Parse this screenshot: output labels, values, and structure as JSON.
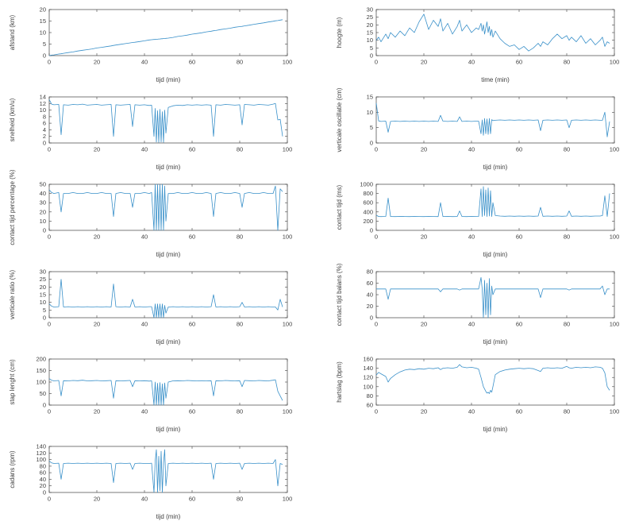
{
  "style": {
    "line_color": "#3990c9",
    "axis_color": "#404040",
    "background": "#ffffff"
  },
  "x_minutes": [
    0,
    1,
    2,
    4,
    5,
    6,
    8,
    10,
    12,
    14,
    16,
    18,
    20,
    22,
    24,
    26,
    27,
    28,
    30,
    32,
    34,
    35,
    36,
    38,
    40,
    42,
    43,
    44,
    44.5,
    45,
    45.5,
    46,
    46.5,
    47,
    47.5,
    48,
    48.5,
    49,
    50,
    52,
    54,
    56,
    58,
    60,
    62,
    64,
    66,
    68,
    69,
    70,
    72,
    74,
    76,
    78,
    80,
    81,
    82,
    84,
    86,
    88,
    90,
    92,
    94,
    95,
    96,
    97,
    98
  ],
  "chart_data": [
    {
      "type": "line",
      "ylabel": "afstand (km)",
      "xlabel": "tijd (min)",
      "xlim": [
        0,
        100
      ],
      "xticks": [
        0,
        20,
        40,
        60,
        80,
        100
      ],
      "ylim": [
        0,
        20
      ],
      "yticks": [
        0,
        5,
        10,
        15,
        20
      ],
      "grid": false,
      "legend": null,
      "x": "shared",
      "y": [
        0,
        0.2,
        0.3,
        0.7,
        0.8,
        1.0,
        1.3,
        1.6,
        2.0,
        2.3,
        2.6,
        2.9,
        3.3,
        3.6,
        3.9,
        4.2,
        4.4,
        4.6,
        4.9,
        5.2,
        5.5,
        5.7,
        5.8,
        6.1,
        6.4,
        6.8,
        6.9,
        7.0,
        7.0,
        7.1,
        7.1,
        7.2,
        7.2,
        7.3,
        7.3,
        7.4,
        7.4,
        7.5,
        7.6,
        7.9,
        8.3,
        8.6,
        8.9,
        9.3,
        9.6,
        9.9,
        10.3,
        10.6,
        10.8,
        10.9,
        11.3,
        11.6,
        11.9,
        12.3,
        12.6,
        12.7,
        12.9,
        13.2,
        13.6,
        13.9,
        14.2,
        14.6,
        14.9,
        15.1,
        15.2,
        15.4,
        15.6
      ]
    },
    {
      "type": "line",
      "ylabel": "hoogte (m)",
      "xlabel": "time (min)",
      "xlim": [
        0,
        100
      ],
      "xticks": [
        0,
        20,
        40,
        60,
        80,
        100
      ],
      "ylim": [
        0,
        30
      ],
      "yticks": [
        0,
        5,
        10,
        15,
        20,
        25,
        30
      ],
      "grid": false,
      "legend": null,
      "x": "shared",
      "y": [
        10,
        12,
        9,
        14,
        11,
        15,
        12,
        16,
        13,
        18,
        15,
        22,
        27,
        17,
        23,
        19,
        24,
        16,
        21,
        14,
        19,
        23,
        16,
        20,
        15,
        18,
        17,
        21,
        16,
        20,
        14,
        18,
        22,
        15,
        19,
        13,
        17,
        12,
        16,
        11,
        8,
        6,
        7,
        4,
        6,
        3,
        5,
        8,
        6,
        9,
        7,
        11,
        14,
        11,
        13,
        10,
        12,
        9,
        13,
        8,
        11,
        7,
        10,
        12,
        6,
        9,
        8
      ]
    },
    {
      "type": "line",
      "ylabel": "snelheid (km/u)",
      "xlabel": "tijd (min)",
      "xlim": [
        0,
        100
      ],
      "xticks": [
        0,
        20,
        40,
        60,
        80,
        100
      ],
      "ylim": [
        0,
        14
      ],
      "yticks": [
        0,
        2,
        4,
        6,
        8,
        10,
        12,
        14
      ],
      "grid": false,
      "legend": null,
      "x": "shared",
      "y": [
        13.2,
        11.8,
        11.6,
        11.7,
        2.5,
        11.6,
        11.5,
        11.7,
        11.6,
        11.8,
        11.5,
        11.6,
        11.7,
        11.5,
        11.6,
        11.7,
        2,
        11.6,
        11.5,
        11.6,
        11.7,
        5,
        11.6,
        11.5,
        11.6,
        11.4,
        11.5,
        2,
        10.5,
        0.3,
        9.8,
        0.2,
        10.2,
        0.3,
        9.5,
        0.2,
        10,
        3,
        10.8,
        11.3,
        11.5,
        11.4,
        11.6,
        11.5,
        11.6,
        11.5,
        11.6,
        11.5,
        2,
        11.6,
        11.5,
        11.7,
        11.6,
        11.5,
        11.6,
        5.5,
        11.7,
        11.6,
        11.5,
        11.7,
        11.6,
        11.5,
        11.8,
        12,
        7,
        7.2,
        2
      ]
    },
    {
      "type": "line",
      "ylabel": "verticale oscillatie (cm)",
      "xlabel": "tijd (min)",
      "xlim": [
        0,
        100
      ],
      "xticks": [
        0,
        20,
        40,
        60,
        80,
        100
      ],
      "ylim": [
        0,
        15
      ],
      "yticks": [
        0,
        5,
        10,
        15
      ],
      "grid": false,
      "legend": null,
      "x": "shared",
      "y": [
        13,
        7.2,
        7,
        7.1,
        3.5,
        7,
        7.1,
        7,
        7.1,
        7,
        7.1,
        7,
        7.1,
        7,
        7.1,
        7,
        9,
        7.1,
        7,
        7.1,
        7,
        8.5,
        7,
        7.1,
        7,
        7.1,
        7.1,
        3,
        7.5,
        2.5,
        8,
        3,
        7.8,
        2.8,
        8,
        3,
        7.6,
        7.3,
        7.4,
        7.5,
        7.4,
        7.5,
        7.4,
        7.5,
        7.4,
        7.5,
        7.4,
        7.5,
        4,
        7.4,
        7.5,
        7.4,
        7.5,
        7.4,
        7.5,
        5,
        7.4,
        7.5,
        7.4,
        7.5,
        7.4,
        7.5,
        7.4,
        7.4,
        10,
        2,
        7
      ]
    },
    {
      "type": "line",
      "ylabel": "contact tijd percentage (%)",
      "xlabel": "tijd (min)",
      "xlim": [
        0,
        100
      ],
      "xticks": [
        0,
        20,
        40,
        60,
        80,
        100
      ],
      "ylim": [
        0,
        50
      ],
      "yticks": [
        0,
        10,
        20,
        30,
        40,
        50
      ],
      "grid": false,
      "legend": null,
      "x": "shared",
      "y": [
        44,
        41,
        40,
        41,
        20,
        40,
        40,
        41,
        40,
        40,
        41,
        40,
        40,
        41,
        40,
        40,
        15,
        40,
        41,
        40,
        40,
        25,
        40,
        40,
        41,
        40,
        41,
        0,
        50,
        0,
        50,
        0,
        50,
        0,
        50,
        0,
        48,
        10,
        40,
        40,
        41,
        40,
        40,
        41,
        40,
        40,
        41,
        40,
        15,
        40,
        41,
        40,
        40,
        41,
        40,
        25,
        40,
        41,
        40,
        40,
        41,
        40,
        40,
        48,
        0,
        45,
        42
      ]
    },
    {
      "type": "line",
      "ylabel": "contact tijd (ms)",
      "xlabel": "tijd (min)",
      "xlim": [
        0,
        100
      ],
      "xticks": [
        0,
        20,
        40,
        60,
        80,
        100
      ],
      "ylim": [
        0,
        1000
      ],
      "yticks": [
        0,
        200,
        400,
        600,
        800,
        1000
      ],
      "grid": false,
      "legend": null,
      "x": "shared",
      "y": [
        330,
        300,
        298,
        302,
        700,
        300,
        298,
        302,
        300,
        298,
        302,
        300,
        298,
        302,
        300,
        298,
        600,
        300,
        302,
        298,
        300,
        420,
        300,
        298,
        302,
        300,
        302,
        900,
        300,
        950,
        320,
        880,
        300,
        920,
        310,
        860,
        300,
        600,
        320,
        310,
        305,
        310,
        305,
        310,
        305,
        310,
        305,
        310,
        500,
        305,
        310,
        305,
        310,
        305,
        310,
        420,
        305,
        310,
        305,
        310,
        305,
        310,
        310,
        320,
        750,
        300,
        800
      ]
    },
    {
      "type": "line",
      "ylabel": "verticale ratio (%)",
      "xlabel": "tijd (min)",
      "xlim": [
        0,
        100
      ],
      "xticks": [
        0,
        20,
        40,
        60,
        80,
        100
      ],
      "ylim": [
        0,
        30
      ],
      "yticks": [
        0,
        5,
        10,
        15,
        20,
        25,
        30
      ],
      "grid": false,
      "legend": null,
      "x": "shared",
      "y": [
        9,
        7.5,
        7,
        7.2,
        25,
        7,
        7.2,
        7,
        7.2,
        7,
        7.2,
        7,
        7.2,
        7,
        7.2,
        7,
        22,
        7.2,
        7,
        7.2,
        7,
        12,
        7,
        7.2,
        7,
        7.2,
        7.2,
        0,
        9,
        0,
        9,
        0,
        9,
        0,
        9,
        0,
        8,
        3,
        7,
        7.2,
        7,
        7.2,
        7,
        7.2,
        7,
        7.2,
        7,
        7.2,
        15,
        7,
        7.2,
        7,
        7.2,
        7,
        7.2,
        10,
        7,
        7.2,
        7,
        7.2,
        7,
        7.2,
        7,
        7,
        5,
        12,
        7
      ]
    },
    {
      "type": "line",
      "ylabel": "contact tijd balans (%)",
      "xlabel": "tijd (min)",
      "xlim": [
        0,
        100
      ],
      "xticks": [
        0,
        20,
        40,
        60,
        80,
        100
      ],
      "ylim": [
        0,
        80
      ],
      "yticks": [
        0,
        20,
        40,
        60,
        80
      ],
      "grid": false,
      "legend": null,
      "x": "shared",
      "y": [
        50,
        50,
        50,
        50,
        32,
        50,
        50,
        50,
        50,
        50,
        50,
        50,
        50,
        50,
        50,
        50,
        45,
        50,
        50,
        50,
        50,
        48,
        50,
        50,
        50,
        50,
        50,
        70,
        50,
        0,
        65,
        5,
        60,
        0,
        68,
        5,
        55,
        40,
        50,
        50,
        50,
        50,
        50,
        50,
        50,
        50,
        50,
        50,
        35,
        50,
        50,
        50,
        50,
        50,
        50,
        48,
        50,
        50,
        50,
        50,
        50,
        50,
        50,
        55,
        40,
        50,
        50
      ]
    },
    {
      "type": "line",
      "ylabel": "stap lenght (cm)",
      "xlabel": "tijd (min)",
      "xlim": [
        0,
        100
      ],
      "xticks": [
        0,
        20,
        40,
        60,
        80,
        100
      ],
      "ylim": [
        0,
        200
      ],
      "yticks": [
        0,
        50,
        100,
        150,
        200
      ],
      "grid": false,
      "legend": null,
      "x": "shared",
      "y": [
        115,
        108,
        105,
        107,
        40,
        106,
        105,
        107,
        106,
        108,
        105,
        106,
        107,
        105,
        106,
        107,
        30,
        106,
        105,
        106,
        107,
        80,
        106,
        105,
        106,
        104,
        105,
        0,
        100,
        0,
        95,
        0,
        98,
        0,
        92,
        0,
        96,
        30,
        100,
        105,
        106,
        105,
        107,
        106,
        105,
        106,
        105,
        106,
        40,
        106,
        105,
        107,
        106,
        105,
        106,
        80,
        107,
        106,
        105,
        107,
        106,
        105,
        108,
        110,
        60,
        40,
        20
      ]
    },
    {
      "type": "line",
      "ylabel": "hartslag (bpm)",
      "xlabel": "tijd (min)",
      "xlim": [
        0,
        100
      ],
      "xticks": [
        0,
        20,
        40,
        60,
        80,
        100
      ],
      "ylim": [
        60,
        160
      ],
      "yticks": [
        60,
        80,
        100,
        120,
        140,
        160
      ],
      "grid": false,
      "legend": null,
      "x": "shared",
      "y": [
        125,
        131,
        128,
        122,
        110,
        118,
        126,
        132,
        136,
        138,
        137,
        139,
        138,
        140,
        139,
        141,
        137,
        140,
        141,
        140,
        142,
        148,
        143,
        141,
        142,
        140,
        138,
        120,
        110,
        100,
        95,
        90,
        86,
        88,
        85,
        92,
        88,
        100,
        126,
        133,
        136,
        138,
        139,
        140,
        139,
        140,
        139,
        135,
        133,
        140,
        141,
        140,
        141,
        140,
        144,
        141,
        140,
        142,
        141,
        142,
        141,
        143,
        142,
        140,
        130,
        100,
        92
      ]
    },
    {
      "type": "line",
      "ylabel": "cadans (rpm)",
      "xlabel": "tijd (min)",
      "xlim": [
        0,
        100
      ],
      "xticks": [
        0,
        20,
        40,
        60,
        80,
        100
      ],
      "ylim": [
        0,
        140
      ],
      "yticks": [
        0,
        20,
        40,
        60,
        80,
        100,
        120,
        140
      ],
      "grid": false,
      "legend": null,
      "x": "shared",
      "y": [
        95,
        90,
        88,
        89,
        40,
        88,
        89,
        88,
        89,
        88,
        89,
        88,
        89,
        88,
        89,
        88,
        30,
        88,
        89,
        88,
        89,
        70,
        88,
        89,
        88,
        88,
        89,
        0,
        95,
        130,
        0,
        110,
        5,
        125,
        0,
        90,
        130,
        20,
        88,
        89,
        88,
        89,
        88,
        89,
        88,
        89,
        88,
        89,
        40,
        88,
        89,
        88,
        89,
        88,
        89,
        70,
        88,
        89,
        88,
        89,
        88,
        89,
        88,
        100,
        20,
        88,
        85
      ]
    }
  ]
}
